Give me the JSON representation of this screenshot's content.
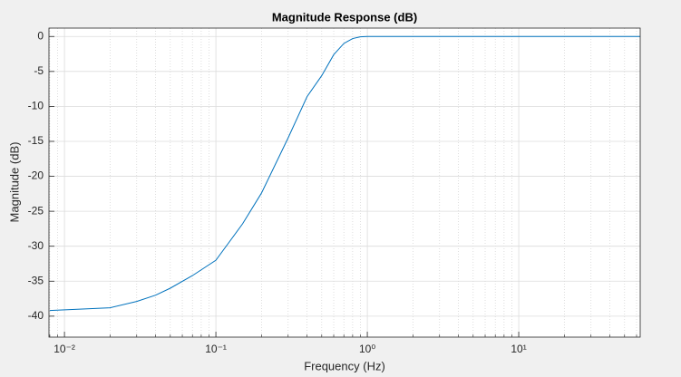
{
  "chart_data": {
    "type": "line",
    "title": "Magnitude Response (dB)",
    "x_label": "Frequency (Hz)",
    "y_label": "Magnitude (dB)",
    "x": [
      0.008,
      0.02,
      0.03,
      0.04,
      0.05,
      0.07,
      0.1,
      0.15,
      0.2,
      0.3,
      0.4,
      0.5,
      0.6,
      0.7,
      0.8,
      0.9,
      1.0,
      2,
      10,
      63.4
    ],
    "series": [
      {
        "color": "#0072bd",
        "values": [
          -39.2,
          -38.8,
          -37.9,
          -37.0,
          -36.0,
          -34.2,
          -32.0,
          -26.8,
          -22.4,
          -14.5,
          -8.6,
          -5.6,
          -2.6,
          -1.0,
          -0.3,
          -0.05,
          0,
          0,
          0,
          0
        ]
      }
    ],
    "xscale": "log",
    "xlim": [
      0.0079,
      63.4
    ],
    "ylim": [
      -43,
      1.2
    ],
    "xticks": [
      {
        "value": 0.01,
        "label": "10⁻²"
      },
      {
        "value": 0.1,
        "label": "10⁻¹"
      },
      {
        "value": 1,
        "label": "10⁰"
      },
      {
        "value": 10,
        "label": "10¹"
      }
    ],
    "yticks": [
      0,
      -5,
      -10,
      -15,
      -20,
      -25,
      -30,
      -35,
      -40
    ],
    "grid": true
  }
}
